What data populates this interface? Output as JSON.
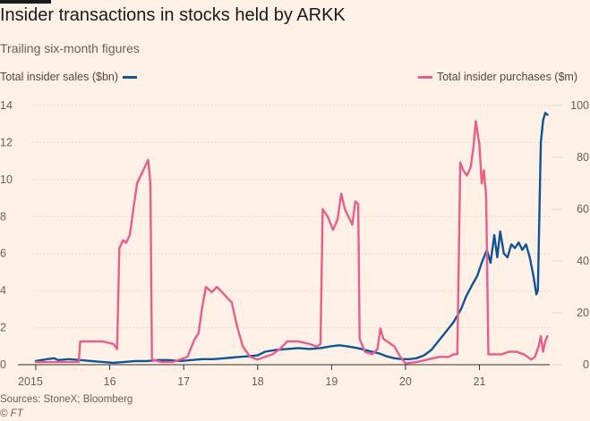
{
  "header": {
    "title": "Insider transactions in stocks held by ARKK",
    "subtitle": "Trailing six-month figures"
  },
  "footer": {
    "source": "Sources: StoneX; Bloomberg",
    "copyright": "© FT"
  },
  "colors": {
    "background": "#fff1e5",
    "sales": "#0f5499",
    "purchases": "#e95d8c",
    "grid": "#e6d9ce",
    "axis": "#33302e"
  },
  "chart_data": {
    "type": "line",
    "title": "Insider transactions in stocks held by ARKK",
    "subtitle": "Trailing six-month figures",
    "x_ticks": [
      "2015",
      "16",
      "17",
      "18",
      "19",
      "20",
      "21"
    ],
    "xlim": [
      2015.0,
      2021.95
    ],
    "y_left": {
      "label": "Total insider sales ($bn)",
      "ticks": [
        0,
        2,
        4,
        6,
        8,
        10,
        12,
        14
      ],
      "range": [
        0,
        14
      ]
    },
    "y_right": {
      "label": "Total insider purchases ($m)",
      "ticks": [
        0,
        20,
        40,
        60,
        80,
        100
      ],
      "range": [
        0,
        100
      ]
    },
    "grid": true,
    "legend": [
      "top-left",
      "top-right"
    ],
    "series": [
      {
        "name": "Total insider sales ($bn)",
        "axis": "left",
        "points": [
          [
            2015.0,
            0.2
          ],
          [
            2015.15,
            0.3
          ],
          [
            2015.25,
            0.35
          ],
          [
            2015.3,
            0.25
          ],
          [
            2015.45,
            0.3
          ],
          [
            2015.6,
            0.25
          ],
          [
            2015.75,
            0.2
          ],
          [
            2015.9,
            0.15
          ],
          [
            2016.05,
            0.1
          ],
          [
            2016.2,
            0.15
          ],
          [
            2016.35,
            0.2
          ],
          [
            2016.5,
            0.2
          ],
          [
            2016.65,
            0.25
          ],
          [
            2016.8,
            0.25
          ],
          [
            2016.95,
            0.2
          ],
          [
            2017.1,
            0.25
          ],
          [
            2017.25,
            0.3
          ],
          [
            2017.4,
            0.3
          ],
          [
            2017.55,
            0.35
          ],
          [
            2017.7,
            0.4
          ],
          [
            2017.85,
            0.45
          ],
          [
            2018.0,
            0.5
          ],
          [
            2018.1,
            0.7
          ],
          [
            2018.25,
            0.8
          ],
          [
            2018.4,
            0.85
          ],
          [
            2018.55,
            0.9
          ],
          [
            2018.7,
            0.85
          ],
          [
            2018.85,
            0.9
          ],
          [
            2019.0,
            1.0
          ],
          [
            2019.1,
            1.05
          ],
          [
            2019.2,
            1.0
          ],
          [
            2019.35,
            0.9
          ],
          [
            2019.5,
            0.75
          ],
          [
            2019.65,
            0.6
          ],
          [
            2019.75,
            0.45
          ],
          [
            2019.85,
            0.35
          ],
          [
            2019.95,
            0.3
          ],
          [
            2020.05,
            0.3
          ],
          [
            2020.15,
            0.35
          ],
          [
            2020.25,
            0.5
          ],
          [
            2020.35,
            0.8
          ],
          [
            2020.45,
            1.3
          ],
          [
            2020.55,
            1.8
          ],
          [
            2020.65,
            2.3
          ],
          [
            2020.75,
            3.0
          ],
          [
            2020.82,
            3.7
          ],
          [
            2020.9,
            4.3
          ],
          [
            2020.97,
            4.8
          ],
          [
            2021.03,
            5.5
          ],
          [
            2021.1,
            6.2
          ],
          [
            2021.15,
            5.5
          ],
          [
            2021.2,
            7.0
          ],
          [
            2021.24,
            5.8
          ],
          [
            2021.28,
            7.2
          ],
          [
            2021.33,
            6.0
          ],
          [
            2021.38,
            5.8
          ],
          [
            2021.43,
            6.5
          ],
          [
            2021.48,
            6.3
          ],
          [
            2021.53,
            6.6
          ],
          [
            2021.58,
            6.2
          ],
          [
            2021.63,
            6.5
          ],
          [
            2021.68,
            5.8
          ],
          [
            2021.73,
            4.8
          ],
          [
            2021.77,
            3.8
          ],
          [
            2021.79,
            4.0
          ],
          [
            2021.81,
            8.0
          ],
          [
            2021.83,
            12.0
          ],
          [
            2021.86,
            13.2
          ],
          [
            2021.89,
            13.6
          ],
          [
            2021.92,
            13.5
          ]
        ]
      },
      {
        "name": "Total insider purchases ($m)",
        "axis": "right",
        "points": [
          [
            2015.0,
            1
          ],
          [
            2015.3,
            1
          ],
          [
            2015.5,
            1
          ],
          [
            2015.58,
            1
          ],
          [
            2015.6,
            9
          ],
          [
            2015.9,
            9
          ],
          [
            2016.05,
            8
          ],
          [
            2016.1,
            6
          ],
          [
            2016.13,
            45
          ],
          [
            2016.18,
            48
          ],
          [
            2016.22,
            47
          ],
          [
            2016.27,
            50
          ],
          [
            2016.32,
            60
          ],
          [
            2016.37,
            70
          ],
          [
            2016.42,
            73
          ],
          [
            2016.47,
            76
          ],
          [
            2016.52,
            79
          ],
          [
            2016.55,
            70
          ],
          [
            2016.57,
            2
          ],
          [
            2016.7,
            1
          ],
          [
            2016.85,
            1
          ],
          [
            2016.95,
            2
          ],
          [
            2017.05,
            3
          ],
          [
            2017.15,
            10
          ],
          [
            2017.2,
            12
          ],
          [
            2017.25,
            22
          ],
          [
            2017.3,
            30
          ],
          [
            2017.38,
            28
          ],
          [
            2017.45,
            30
          ],
          [
            2017.55,
            27
          ],
          [
            2017.65,
            24
          ],
          [
            2017.72,
            15
          ],
          [
            2017.8,
            7
          ],
          [
            2017.9,
            3
          ],
          [
            2018.0,
            2
          ],
          [
            2018.1,
            3
          ],
          [
            2018.2,
            4
          ],
          [
            2018.3,
            6
          ],
          [
            2018.4,
            9
          ],
          [
            2018.55,
            9
          ],
          [
            2018.7,
            8
          ],
          [
            2018.8,
            7
          ],
          [
            2018.85,
            8
          ],
          [
            2018.88,
            60
          ],
          [
            2018.95,
            57
          ],
          [
            2019.02,
            52
          ],
          [
            2019.08,
            56
          ],
          [
            2019.13,
            66
          ],
          [
            2019.18,
            60
          ],
          [
            2019.23,
            57
          ],
          [
            2019.28,
            54
          ],
          [
            2019.32,
            63
          ],
          [
            2019.36,
            62
          ],
          [
            2019.38,
            10
          ],
          [
            2019.45,
            5
          ],
          [
            2019.55,
            4
          ],
          [
            2019.62,
            6
          ],
          [
            2019.66,
            14
          ],
          [
            2019.7,
            10
          ],
          [
            2019.75,
            9
          ],
          [
            2019.85,
            7
          ],
          [
            2019.93,
            3
          ],
          [
            2020.0,
            0.5
          ],
          [
            2020.15,
            1
          ],
          [
            2020.3,
            2
          ],
          [
            2020.45,
            3
          ],
          [
            2020.58,
            3
          ],
          [
            2020.65,
            4
          ],
          [
            2020.7,
            4
          ],
          [
            2020.74,
            78
          ],
          [
            2020.78,
            75
          ],
          [
            2020.83,
            73
          ],
          [
            2020.88,
            76
          ],
          [
            2020.92,
            84
          ],
          [
            2020.95,
            94
          ],
          [
            2021.0,
            85
          ],
          [
            2021.03,
            70
          ],
          [
            2021.06,
            75
          ],
          [
            2021.09,
            65
          ],
          [
            2021.12,
            4
          ],
          [
            2021.3,
            4
          ],
          [
            2021.4,
            5
          ],
          [
            2021.5,
            5
          ],
          [
            2021.6,
            4
          ],
          [
            2021.7,
            2
          ],
          [
            2021.75,
            3
          ],
          [
            2021.8,
            7
          ],
          [
            2021.83,
            11
          ],
          [
            2021.86,
            5
          ],
          [
            2021.89,
            9
          ],
          [
            2021.92,
            11
          ]
        ]
      }
    ]
  }
}
